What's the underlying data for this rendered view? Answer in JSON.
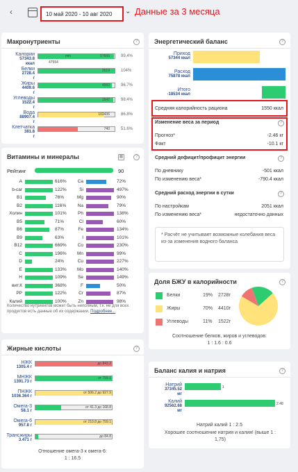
{
  "header": {
    "date_range": "10 май 2020 - 10 авг 2020",
    "annotation": "Данные за 3 месяца"
  },
  "macro": {
    "title": "Макронутриенты",
    "rows": [
      {
        "name": "Калории",
        "value": "57343.8",
        "unit": "ккал",
        "fill": 0.994,
        "bar_label": "min",
        "bar_label2": "57665",
        "sub": "47554",
        "pct": "99.4%"
      },
      {
        "name": "Белки",
        "value": "2728.4",
        "unit": "г",
        "fill": 1.0,
        "bar_label2": "2619",
        "pct": "104%"
      },
      {
        "name": "Жиры",
        "value": "4409.6",
        "unit": "г",
        "fill": 0.967,
        "bar_label2": "4560",
        "pct": "96.7%"
      },
      {
        "name": "Углеводы",
        "value": "1522.4",
        "unit": "г",
        "fill": 0.984,
        "bar_label2": "1547",
        "pct": "98.4%"
      },
      {
        "name": "Вода",
        "value": "88907.4",
        "unit": "г",
        "fill": 0.868,
        "bar_label2": "102436",
        "pct": "86.8%"
      },
      {
        "name": "Клетчатка",
        "value": "381.8",
        "unit": "г",
        "fill": 0.516,
        "bar_label2": "740",
        "pct": "51.6%"
      }
    ],
    "colors": {
      "green": "#2ecc71",
      "yellow": "#ffe27a",
      "red": "#f07272"
    }
  },
  "energy": {
    "title": "Энергетический баланс",
    "rows": [
      {
        "name": "Приход",
        "value": "57344 ккал"
      },
      {
        "name": "Расход",
        "value": "75878 ккал"
      },
      {
        "name": "Итого",
        "value": "-18534 ккал"
      }
    ],
    "avg_label": "Средняя калорийность рациона",
    "avg_value": "1550 ккал",
    "weight_title": "Изменение веса за период",
    "forecast_label": "Прогноз*",
    "forecast_value": "-2.46 кг",
    "fact_label": "Факт",
    "fact_value": "-10.1 кг",
    "deficit_title": "Средний дефицит/профицит энергии",
    "diary_label": "По дневнику",
    "diary_value": "-501 ккал",
    "wchange_label": "По изменению веса*",
    "wchange_value": "-790.4 ккал",
    "spend_title": "Средний расход энергии в сутки",
    "settings_label": "По настройкам",
    "settings_value": "2051 ккал",
    "spend_wchange_label": "По изменению веса*",
    "spend_wchange_value": "недостаточно данных",
    "note": "* Расчёт не учитывает возможные колебания веса из-за изменения водного баланса"
  },
  "vitamins": {
    "title": "Витамины и минералы",
    "rating_label": "Рейтинг",
    "rating_value": "90",
    "left": [
      {
        "name": "A",
        "pct": "616%",
        "fill": 1.0,
        "color": "#2ecc71"
      },
      {
        "name": "b-car",
        "pct": "122%",
        "fill": 1.0,
        "color": "#2ecc71"
      },
      {
        "name": "B1",
        "pct": "76%",
        "fill": 0.76,
        "color": "#2ecc71"
      },
      {
        "name": "B2",
        "pct": "116%",
        "fill": 1.0,
        "color": "#2ecc71"
      },
      {
        "name": "Холин",
        "pct": "101%",
        "fill": 1.0,
        "color": "#2ecc71"
      },
      {
        "name": "B5",
        "pct": "71%",
        "fill": 0.71,
        "color": "#2ecc71"
      },
      {
        "name": "B6",
        "pct": "87%",
        "fill": 0.87,
        "color": "#2ecc71"
      },
      {
        "name": "B9",
        "pct": "63%",
        "fill": 0.63,
        "color": "#2ecc71"
      },
      {
        "name": "B12",
        "pct": "669%",
        "fill": 1.0,
        "color": "#2ecc71"
      },
      {
        "name": "C",
        "pct": "196%",
        "fill": 1.0,
        "color": "#2ecc71"
      },
      {
        "name": "D",
        "pct": "24%",
        "fill": 0.24,
        "color": "#2ecc71"
      },
      {
        "name": "E",
        "pct": "133%",
        "fill": 1.0,
        "color": "#2ecc71"
      },
      {
        "name": "H",
        "pct": "109%",
        "fill": 1.0,
        "color": "#2ecc71"
      },
      {
        "name": "вит.К",
        "pct": "368%",
        "fill": 1.0,
        "color": "#2ecc71"
      },
      {
        "name": "PP",
        "pct": "122%",
        "fill": 1.0,
        "color": "#2ecc71"
      },
      {
        "name": "Калий",
        "pct": "100%",
        "fill": 1.0,
        "color": "#2ecc71"
      }
    ],
    "right": [
      {
        "name": "Ca",
        "pct": "72%",
        "fill": 0.72,
        "color": "#2b8fd8"
      },
      {
        "name": "Si",
        "pct": "497%",
        "fill": 1.0,
        "color": "#9b59b6"
      },
      {
        "name": "Mg",
        "pct": "90%",
        "fill": 0.9,
        "color": "#9b59b6"
      },
      {
        "name": "Na",
        "pct": "79%",
        "fill": 0.79,
        "color": "#9b59b6"
      },
      {
        "name": "Ph",
        "pct": "138%",
        "fill": 1.0,
        "color": "#9b59b6"
      },
      {
        "name": "Cl",
        "pct": "60%",
        "fill": 0.6,
        "color": "#9b59b6"
      },
      {
        "name": "Fe",
        "pct": "134%",
        "fill": 1.0,
        "color": "#9b59b6"
      },
      {
        "name": "I",
        "pct": "101%",
        "fill": 1.0,
        "color": "#9b59b6"
      },
      {
        "name": "Co",
        "pct": "230%",
        "fill": 1.0,
        "color": "#9b59b6"
      },
      {
        "name": "Mn",
        "pct": "99%",
        "fill": 0.99,
        "color": "#9b59b6"
      },
      {
        "name": "Cu",
        "pct": "227%",
        "fill": 1.0,
        "color": "#9b59b6"
      },
      {
        "name": "Mo",
        "pct": "140%",
        "fill": 1.0,
        "color": "#9b59b6"
      },
      {
        "name": "Se",
        "pct": "149%",
        "fill": 1.0,
        "color": "#9b59b6"
      },
      {
        "name": "F",
        "pct": "50%",
        "fill": 0.5,
        "color": "#2b8fd8"
      },
      {
        "name": "Cr",
        "pct": "87%",
        "fill": 0.87,
        "color": "#9b59b6"
      },
      {
        "name": "Zn",
        "pct": "98%",
        "fill": 0.98,
        "color": "#9b59b6"
      }
    ],
    "note": "Количество нутриентов может быть неполным, т.к. не для всех продуктов есть данные об их содержании.",
    "more_link": "Подробнее..."
  },
  "bju": {
    "title": "Доля БЖУ в калорийности",
    "rows": [
      {
        "name": "Белки",
        "pct": "19%",
        "grams": "2728г",
        "color": "#2ecc71",
        "share": 0.19
      },
      {
        "name": "Жиры",
        "pct": "70%",
        "grams": "4410г",
        "color": "#ffe27a",
        "share": 0.7
      },
      {
        "name": "Углеводы",
        "pct": "11%",
        "grams": "1522г",
        "color": "#f07272",
        "share": 0.11
      }
    ],
    "ratio_label": "Соотношение белков, жиров и углеводов:",
    "ratio_value": "1 : 1.6 : 0.6"
  },
  "fatty": {
    "title": "Жирные кислоты",
    "rows": [
      {
        "name": "НЖК",
        "value": "1305.4 г",
        "bar_text": "до 843.2",
        "color": "#f07272",
        "fill": 1.0
      },
      {
        "name": "МНЖК",
        "value": "1391.73 г",
        "bar_text": "от 759.1",
        "color": "#2ecc71",
        "fill": 1.0
      },
      {
        "name": "ПНЖК",
        "value": "1036.364 г",
        "bar_text": "от 506.2  до 927.9",
        "color": "#ffe27a",
        "fill": 1.0
      },
      {
        "name": "Омега-3",
        "value": "58.1 г",
        "bar_text": "от 41.3  до 168.8",
        "color": "#2ecc71",
        "fill": 0.34
      },
      {
        "name": "Омега-6",
        "value": "957.8 г",
        "bar_text": "от 210.8  до 759.1",
        "color": "#ffe27a",
        "fill": 1.0
      },
      {
        "name": "Трансжиры",
        "value": "3.471 г",
        "bar_text": "до 84.8",
        "color": "#2ecc71",
        "fill": 0.04
      }
    ],
    "ratio_label": "Отношение омега-3 к омега-6:",
    "ratio_value": "1 : 16.5"
  },
  "kna": {
    "title": "Баланс калия и натрия",
    "rows": [
      {
        "name": "Натрий",
        "value": "37345.52",
        "unit": "мг",
        "ratio": "1",
        "fill": 0.4
      },
      {
        "name": "Калий",
        "value": "92562.68",
        "unit": "мг",
        "ratio": "2.48",
        "fill": 1.0
      }
    ],
    "ratio_label": "Натрий калий 1 : 2.5",
    "verdict": "Хорошее соотношение натрия и калия! (выше 1 : 1,75)"
  }
}
